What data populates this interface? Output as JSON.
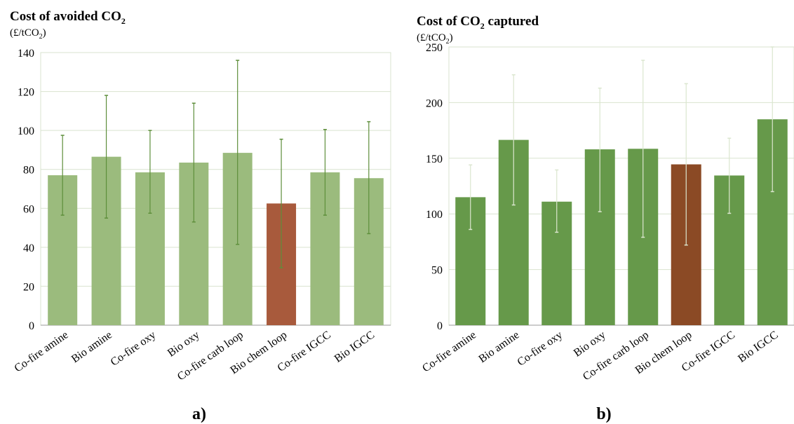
{
  "chart_data": [
    {
      "type": "bar",
      "title": "Cost of avoided CO",
      "title_sub": "2",
      "unit_label": "(£/tCO",
      "unit_sub": "2",
      "unit_close": ")",
      "panel_label": "a)",
      "categories": [
        "Co-fire amine",
        "Bio amine",
        "Co-fire oxy",
        "Bio oxy",
        "Co-fire carb loop",
        "Bio chem loop",
        "Co-fire IGCC",
        "Bio IGCC"
      ],
      "values": [
        77,
        86.5,
        78.5,
        83.5,
        88.5,
        62.5,
        78.5,
        75.5
      ],
      "error_low": [
        56.5,
        55,
        57.5,
        53,
        41.5,
        29.5,
        56.5,
        47
      ],
      "error_high": [
        97.5,
        118,
        100,
        114,
        136,
        95.5,
        100.5,
        104.5
      ],
      "ylim": [
        0,
        140
      ],
      "yticks": [
        0,
        20,
        40,
        60,
        80,
        100,
        120,
        140
      ],
      "grid": true,
      "colors": {
        "bar": "#9bbb7d",
        "highlight": "#a85a3c",
        "error": "#5e8f3b",
        "grid": "#d9e3cf"
      },
      "highlight_index": 5
    },
    {
      "type": "bar",
      "title": "Cost of CO",
      "title_sub": "2",
      "title_suffix": " captured",
      "unit_label": "(£/tCO",
      "unit_sub": "2",
      "unit_close": ")",
      "panel_label": "b)",
      "categories": [
        "Co-fire amine",
        "Bio amine",
        "Co-fire oxy",
        "Bio oxy",
        "Co-fire carb loop",
        "Bio chem loop",
        "Co-fire IGCC",
        "Bio IGCC"
      ],
      "values": [
        115,
        166.5,
        111,
        158,
        158.5,
        144.5,
        134.5,
        185
      ],
      "error_low": [
        86,
        108,
        83.5,
        102,
        79,
        72,
        100.5,
        120
      ],
      "error_high": [
        144,
        225,
        139.5,
        213,
        238,
        217,
        168,
        250
      ],
      "ylim": [
        0,
        250
      ],
      "yticks": [
        0,
        50,
        100,
        150,
        200,
        250
      ],
      "grid": true,
      "colors": {
        "bar": "#66994a",
        "highlight": "#8b4a25",
        "error": "#dbe6cf",
        "grid": "#d9e3cf"
      },
      "highlight_index": 5
    }
  ]
}
